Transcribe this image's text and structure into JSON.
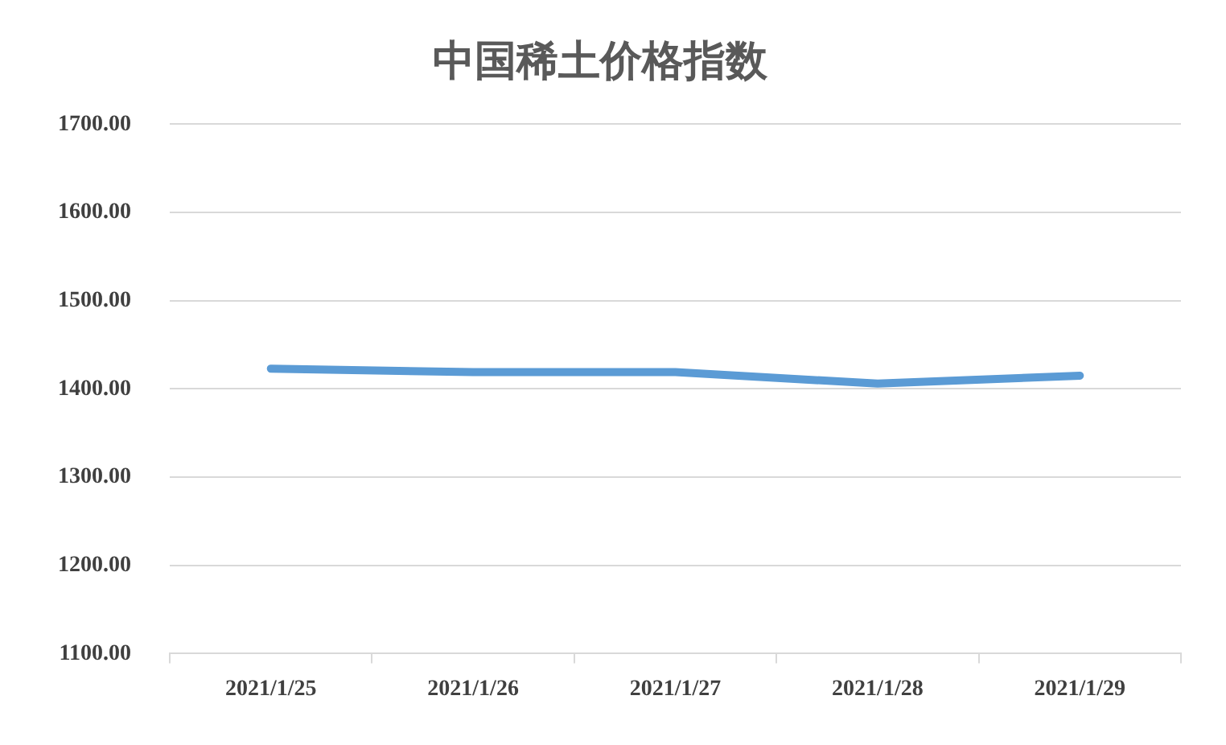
{
  "chart_data": {
    "type": "line",
    "title": "中国稀土价格指数",
    "categories": [
      "2021/1/25",
      "2021/1/26",
      "2021/1/27",
      "2021/1/28",
      "2021/1/29"
    ],
    "series": [
      {
        "color": "#5b9bd5",
        "values": [
          1423,
          1419,
          1419,
          1406,
          1415
        ]
      }
    ],
    "ylim": [
      1100,
      1700
    ],
    "yticks": [
      {
        "value": 1100,
        "label": "1100.00"
      },
      {
        "value": 1200,
        "label": "1200.00"
      },
      {
        "value": 1300,
        "label": "1300.00"
      },
      {
        "value": 1400,
        "label": "1400.00"
      },
      {
        "value": 1500,
        "label": "1500.00"
      },
      {
        "value": 1600,
        "label": "1600.00"
      },
      {
        "value": 1700,
        "label": "1700.00"
      }
    ],
    "grid": "y",
    "legend": false,
    "marker": "none"
  }
}
